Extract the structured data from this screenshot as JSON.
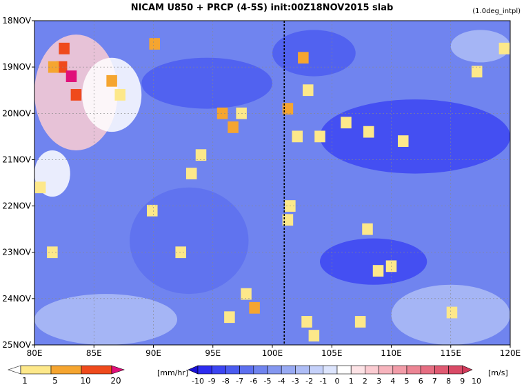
{
  "chart_data": {
    "type": "heatmap",
    "title": "NICAM   U850  +  PRCP  (4-5S)  init:00Z18NOV2015  slab",
    "note": "(1.0deg_intpl)",
    "x": {
      "ticks": [
        80,
        85,
        90,
        95,
        100,
        105,
        110,
        115,
        120
      ],
      "tick_labels": [
        "80E",
        "85E",
        "90E",
        "95E",
        "100E",
        "105E",
        "110E",
        "115E",
        "120E"
      ],
      "range": [
        80,
        120
      ]
    },
    "y": {
      "ticks": [
        "18NOV",
        "19NOV",
        "20NOV",
        "21NOV",
        "22NOV",
        "23NOV",
        "24NOV",
        "25NOV"
      ],
      "range": [
        "18NOV",
        "25NOV"
      ],
      "reversed": true
    },
    "grid": true,
    "vline": {
      "x": 101.0,
      "style": "dashed"
    },
    "fields": {
      "u850": {
        "units": "[m/s]",
        "levels": [
          "-10",
          "-9",
          "-8",
          "-7",
          "-6",
          "-5",
          "-4",
          "-3",
          "-2",
          "-1",
          "0",
          "1",
          "2",
          "3",
          "4",
          "5",
          "6",
          "7",
          "8",
          "9",
          "10"
        ],
        "colors": [
          "#1a10d6",
          "#2d2cf0",
          "#3c45f2",
          "#4b5cf0",
          "#5d70ef",
          "#7084ef",
          "#8497f0",
          "#98aaf3",
          "#aebdf6",
          "#c5d1fa",
          "#dde5fd",
          "#ffffff",
          "#fde3e6",
          "#fbccd2",
          "#f7b4bd",
          "#f29ca8",
          "#ec8594",
          "#e66e82",
          "#e05a72",
          "#d94a66",
          "#d23a5a"
        ],
        "regions": [
          {
            "x": [
              80,
              87
            ],
            "y": [
              18.3,
              20.8
            ],
            "value": 3
          },
          {
            "x": [
              84,
              89
            ],
            "y": [
              18.8,
              20.4
            ],
            "value": 1
          },
          {
            "x": [
              80,
              83
            ],
            "y": [
              20.8,
              21.8
            ],
            "value": 1
          },
          {
            "x": [
              80,
              120
            ],
            "y": [
              18,
              25
            ],
            "value": -5
          },
          {
            "x": [
              89,
              100
            ],
            "y": [
              18.8,
              19.9
            ],
            "value": -7
          },
          {
            "x": [
              104,
              120
            ],
            "y": [
              19.7,
              21.3
            ],
            "value": -8
          },
          {
            "x": [
              100,
              107
            ],
            "y": [
              18.2,
              19.2
            ],
            "value": -7
          },
          {
            "x": [
              88,
              98
            ],
            "y": [
              21.6,
              23.9
            ],
            "value": -6
          },
          {
            "x": [
              104,
              113
            ],
            "y": [
              22.7,
              23.7
            ],
            "value": -8
          },
          {
            "x": [
              115,
              120
            ],
            "y": [
              18.2,
              18.9
            ],
            "value": -2
          },
          {
            "x": [
              110,
              120
            ],
            "y": [
              23.7,
              25
            ],
            "value": -2
          },
          {
            "x": [
              80,
              92
            ],
            "y": [
              23.9,
              25
            ],
            "value": -2
          }
        ]
      },
      "precip": {
        "units": "[mm/hr]",
        "levels": [
          "1",
          "5",
          "10",
          "20"
        ],
        "colors": [
          "#ffffff",
          "#fde88a",
          "#f5a530",
          "#ef4a1c",
          "#e0107a"
        ],
        "cells": [
          {
            "x": 82.5,
            "y": 18.6,
            "value": 12
          },
          {
            "x": 82.3,
            "y": 19.0,
            "value": 18
          },
          {
            "x": 83.1,
            "y": 19.2,
            "value": 22
          },
          {
            "x": 83.5,
            "y": 19.6,
            "value": 14
          },
          {
            "x": 81.6,
            "y": 19.0,
            "value": 6
          },
          {
            "x": 86.5,
            "y": 19.3,
            "value": 8
          },
          {
            "x": 87.2,
            "y": 19.6,
            "value": 4
          },
          {
            "x": 90.1,
            "y": 18.5,
            "value": 6
          },
          {
            "x": 95.8,
            "y": 20.0,
            "value": 5
          },
          {
            "x": 96.7,
            "y": 20.3,
            "value": 8
          },
          {
            "x": 97.4,
            "y": 20.0,
            "value": 3
          },
          {
            "x": 94.0,
            "y": 20.9,
            "value": 4
          },
          {
            "x": 93.2,
            "y": 21.3,
            "value": 3
          },
          {
            "x": 101.3,
            "y": 19.9,
            "value": 6
          },
          {
            "x": 102.6,
            "y": 18.8,
            "value": 5
          },
          {
            "x": 103.0,
            "y": 19.5,
            "value": 3
          },
          {
            "x": 102.1,
            "y": 20.5,
            "value": 3
          },
          {
            "x": 106.2,
            "y": 20.2,
            "value": 4
          },
          {
            "x": 108.1,
            "y": 20.4,
            "value": 3
          },
          {
            "x": 104.0,
            "y": 20.5,
            "value": 2
          },
          {
            "x": 111.0,
            "y": 20.6,
            "value": 3
          },
          {
            "x": 101.5,
            "y": 22.0,
            "value": 4
          },
          {
            "x": 101.3,
            "y": 22.3,
            "value": 3
          },
          {
            "x": 89.9,
            "y": 22.1,
            "value": 3
          },
          {
            "x": 108.9,
            "y": 23.4,
            "value": 4
          },
          {
            "x": 110.0,
            "y": 23.3,
            "value": 3
          },
          {
            "x": 97.8,
            "y": 23.9,
            "value": 3
          },
          {
            "x": 98.5,
            "y": 24.2,
            "value": 5
          },
          {
            "x": 96.4,
            "y": 24.4,
            "value": 3
          },
          {
            "x": 102.9,
            "y": 24.5,
            "value": 4
          },
          {
            "x": 107.4,
            "y": 24.5,
            "value": 3
          },
          {
            "x": 103.5,
            "y": 24.8,
            "value": 3
          },
          {
            "x": 117.2,
            "y": 19.1,
            "value": 3
          },
          {
            "x": 119.5,
            "y": 18.6,
            "value": 2
          },
          {
            "x": 80.5,
            "y": 21.6,
            "value": 2
          },
          {
            "x": 81.5,
            "y": 23.0,
            "value": 2
          },
          {
            "x": 92.3,
            "y": 23.0,
            "value": 2
          },
          {
            "x": 108.0,
            "y": 22.5,
            "value": 2
          },
          {
            "x": 115.1,
            "y": 24.3,
            "value": 2
          }
        ]
      }
    },
    "legend": {
      "position": "bottom",
      "precip_labels": [
        "1",
        "5",
        "10",
        "20"
      ],
      "u_labels": [
        "-10",
        "-9",
        "-8",
        "-7",
        "-6",
        "-5",
        "-4",
        "-3",
        "-2",
        "-1",
        "0",
        "1",
        "2",
        "3",
        "4",
        "5",
        "6",
        "7",
        "8",
        "9",
        "10"
      ]
    }
  }
}
